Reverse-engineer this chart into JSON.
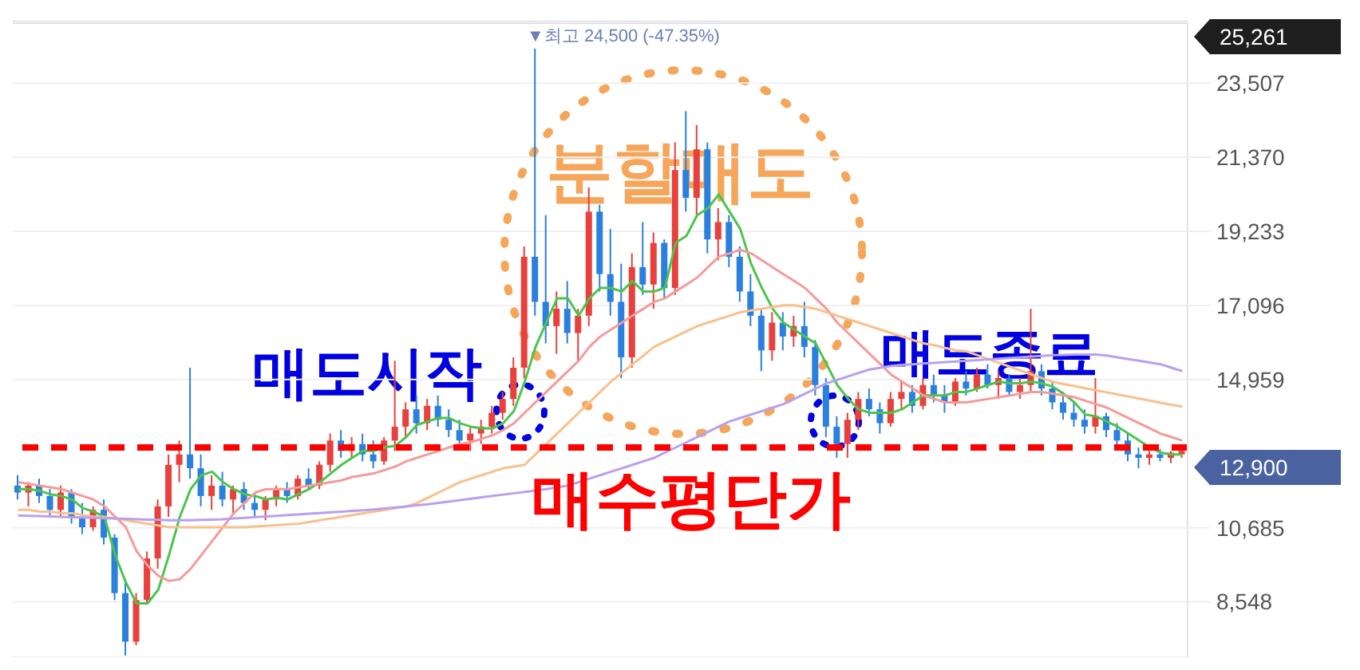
{
  "chart_data": {
    "type": "candlestick",
    "categories": [
      null,
      null,
      null,
      null,
      null,
      null,
      null,
      null,
      null,
      null,
      null,
      null,
      null,
      null,
      null,
      null,
      null,
      null,
      null,
      null,
      null,
      null,
      null,
      null,
      null,
      null,
      null,
      null,
      null,
      null,
      null,
      null,
      null,
      null,
      null,
      null,
      null,
      null,
      null,
      null,
      null,
      null,
      null,
      null,
      null,
      null,
      null,
      null,
      null,
      null,
      null,
      null,
      null,
      null,
      null,
      null,
      null,
      null,
      null,
      null,
      null,
      null,
      null,
      null,
      null,
      null,
      null,
      null,
      null,
      null,
      null,
      null,
      null,
      null,
      null,
      null,
      null,
      null,
      null,
      null,
      null,
      null,
      null,
      null,
      null,
      null,
      null,
      null,
      null,
      null,
      null,
      null,
      null,
      null,
      null,
      null,
      null,
      null,
      null,
      null,
      null,
      null,
      null,
      null,
      null,
      null,
      null,
      null,
      null
    ],
    "ohlc": [
      [
        11900,
        12200,
        11500,
        11700
      ],
      [
        11700,
        12000,
        11300,
        11900
      ],
      [
        11900,
        12100,
        11400,
        11600
      ],
      [
        11600,
        11800,
        11000,
        11200
      ],
      [
        11200,
        11900,
        11000,
        11700
      ],
      [
        11700,
        11800,
        10800,
        11000
      ],
      [
        11000,
        11400,
        10500,
        10700
      ],
      [
        10700,
        11300,
        10600,
        11200
      ],
      [
        11200,
        11500,
        10200,
        10400
      ],
      [
        10400,
        10500,
        8600,
        8800
      ],
      [
        8800,
        9200,
        7000,
        7400
      ],
      [
        7400,
        8800,
        7300,
        8600
      ],
      [
        8600,
        10000,
        8500,
        9800
      ],
      [
        9800,
        11500,
        9500,
        11300
      ],
      [
        11300,
        12800,
        11000,
        12500
      ],
      [
        12500,
        13200,
        12000,
        12800
      ],
      [
        12800,
        15300,
        12100,
        12400
      ],
      [
        12400,
        12800,
        11300,
        11600
      ],
      [
        11600,
        12200,
        11200,
        11900
      ],
      [
        11900,
        12300,
        11300,
        11500
      ],
      [
        11500,
        11900,
        11100,
        11800
      ],
      [
        11800,
        12000,
        11200,
        11400
      ],
      [
        11400,
        11700,
        11000,
        11200
      ],
      [
        11200,
        11600,
        10900,
        11500
      ],
      [
        11500,
        11900,
        11300,
        11800
      ],
      [
        11800,
        12000,
        11400,
        11600
      ],
      [
        11600,
        12200,
        11500,
        12100
      ],
      [
        12100,
        12400,
        11800,
        11900
      ],
      [
        11900,
        12600,
        11800,
        12500
      ],
      [
        12500,
        13400,
        12300,
        13200
      ],
      [
        13200,
        13500,
        12700,
        12900
      ],
      [
        12900,
        13300,
        12700,
        13100
      ],
      [
        13100,
        13400,
        12600,
        12800
      ],
      [
        12800,
        13200,
        12400,
        12600
      ],
      [
        12600,
        13300,
        12500,
        13200
      ],
      [
        13200,
        15500,
        12900,
        13600
      ],
      [
        13600,
        14300,
        13300,
        14100
      ],
      [
        14100,
        14500,
        13400,
        13700
      ],
      [
        13700,
        14400,
        13500,
        14200
      ],
      [
        14200,
        14500,
        13600,
        13800
      ],
      [
        13800,
        14100,
        13300,
        13500
      ],
      [
        13500,
        13800,
        13000,
        13200
      ],
      [
        13200,
        13600,
        12900,
        13400
      ],
      [
        13400,
        13800,
        13100,
        13600
      ],
      [
        13600,
        14200,
        13400,
        14000
      ],
      [
        14000,
        14600,
        13800,
        14400
      ],
      [
        14400,
        15600,
        14200,
        15300
      ],
      [
        15300,
        18800,
        15000,
        18500
      ],
      [
        18500,
        24500,
        16800,
        17200
      ],
      [
        17200,
        19700,
        16000,
        16500
      ],
      [
        16500,
        17500,
        15700,
        17000
      ],
      [
        17000,
        17800,
        16000,
        16300
      ],
      [
        16300,
        17000,
        15500,
        16800
      ],
      [
        16800,
        20500,
        16500,
        19800
      ],
      [
        19800,
        20000,
        17500,
        18000
      ],
      [
        18000,
        19300,
        16800,
        17200
      ],
      [
        17200,
        18300,
        15000,
        15600
      ],
      [
        15600,
        18600,
        15300,
        18200
      ],
      [
        18200,
        19500,
        17400,
        17700
      ],
      [
        17700,
        19200,
        17000,
        18900
      ],
      [
        18900,
        19000,
        17300,
        17600
      ],
      [
        17600,
        21800,
        17400,
        21000
      ],
      [
        21000,
        22700,
        19800,
        20200
      ],
      [
        20200,
        22300,
        19700,
        21600
      ],
      [
        21600,
        21800,
        18600,
        19000
      ],
      [
        19000,
        19900,
        18400,
        19500
      ],
      [
        19500,
        19700,
        18200,
        18500
      ],
      [
        18500,
        18800,
        17200,
        17500
      ],
      [
        17500,
        18000,
        16500,
        16800
      ],
      [
        16800,
        17000,
        15200,
        15800
      ],
      [
        15800,
        16900,
        15500,
        16600
      ],
      [
        16600,
        16900,
        15800,
        16200
      ],
      [
        16200,
        16800,
        15900,
        16500
      ],
      [
        16500,
        17200,
        15600,
        15900
      ],
      [
        15900,
        16100,
        14500,
        14800
      ],
      [
        14800,
        15000,
        13300,
        13600
      ],
      [
        13600,
        13900,
        12700,
        13100
      ],
      [
        13100,
        14000,
        12700,
        13800
      ],
      [
        13800,
        14600,
        13500,
        14400
      ],
      [
        14400,
        14700,
        13900,
        14100
      ],
      [
        14100,
        14300,
        13400,
        13700
      ],
      [
        13700,
        14600,
        13600,
        14400
      ],
      [
        14400,
        14900,
        14100,
        14600
      ],
      [
        14600,
        14800,
        14000,
        14200
      ],
      [
        14200,
        15000,
        14100,
        14800
      ],
      [
        14800,
        15100,
        14300,
        14500
      ],
      [
        14500,
        14800,
        14000,
        14300
      ],
      [
        14300,
        15000,
        14200,
        14900
      ],
      [
        14900,
        15200,
        14500,
        14700
      ],
      [
        14700,
        15300,
        14600,
        15100
      ],
      [
        15100,
        15400,
        14700,
        14800
      ],
      [
        14800,
        15200,
        14400,
        15000
      ],
      [
        15000,
        15100,
        14500,
        14600
      ],
      [
        14600,
        15000,
        14400,
        14800
      ],
      [
        14800,
        17000,
        14600,
        15200
      ],
      [
        15200,
        15400,
        14500,
        14700
      ],
      [
        14700,
        14900,
        14100,
        14300
      ],
      [
        14300,
        14600,
        13800,
        14000
      ],
      [
        14000,
        14300,
        13600,
        13800
      ],
      [
        13800,
        14100,
        13400,
        13600
      ],
      [
        13600,
        15000,
        13400,
        13900
      ],
      [
        13900,
        14000,
        13300,
        13500
      ],
      [
        13500,
        13700,
        13000,
        13200
      ],
      [
        13200,
        13400,
        12600,
        12800
      ],
      [
        12800,
        13000,
        12400,
        12700
      ],
      [
        12700,
        12900,
        12500,
        12800
      ],
      [
        12800,
        12950,
        12600,
        12700
      ],
      [
        12700,
        12900,
        12550,
        12850
      ],
      [
        12800,
        12950,
        12700,
        12900
      ]
    ],
    "series": [
      {
        "type": "line",
        "color": "#4cc44c",
        "values": [
          11800,
          11800,
          11750,
          11650,
          11600,
          11500,
          11250,
          11150,
          11000,
          9900,
          9100,
          8500,
          8500,
          8900,
          9900,
          11000,
          11800,
          12200,
          12300,
          12000,
          11800,
          11650,
          11600,
          11500,
          11550,
          11500,
          11650,
          11800,
          12000,
          12250,
          12500,
          12700,
          12900,
          12900,
          13000,
          13050,
          13300,
          13650,
          13750,
          13850,
          13850,
          13700,
          13600,
          13550,
          13550,
          13700,
          14050,
          14900,
          15900,
          16600,
          17300,
          17300,
          16800,
          17300,
          17600,
          17600,
          17500,
          17800,
          17500,
          17500,
          17600,
          18900,
          19100,
          19700,
          19900,
          20300,
          19800,
          19300,
          18300,
          17600,
          17000,
          16600,
          16400,
          16200,
          16000,
          15400,
          14800,
          14400,
          14100,
          14000,
          14000,
          14000,
          14100,
          14300,
          14500,
          14500,
          14500,
          14600,
          14600,
          14700,
          14800,
          14900,
          14850,
          14850,
          14900,
          14850,
          14750,
          14550,
          14300,
          13950,
          13900,
          13750,
          13600,
          13400,
          13200,
          13000,
          12850,
          12800,
          12800
        ]
      },
      {
        "type": "line",
        "color": "#f59a9a",
        "values": [
          12000,
          11950,
          11900,
          11850,
          11800,
          11700,
          11600,
          11500,
          11300,
          11000,
          10700,
          10000,
          9600,
          9300,
          9150,
          9200,
          9500,
          9900,
          10300,
          10700,
          11100,
          11400,
          11700,
          11800,
          11800,
          11800,
          11850,
          11900,
          11950,
          12000,
          12050,
          12150,
          12200,
          12250,
          12350,
          12450,
          12600,
          12700,
          12800,
          12900,
          13000,
          13100,
          13150,
          13250,
          13350,
          13500,
          13700,
          14000,
          14300,
          14600,
          14900,
          15200,
          15500,
          15900,
          16200,
          16400,
          16600,
          16800,
          17000,
          17200,
          17300,
          17500,
          17700,
          17900,
          18200,
          18500,
          18600,
          18700,
          18600,
          18400,
          18200,
          18000,
          17800,
          17600,
          17300,
          17000,
          16600,
          16300,
          16000,
          15700,
          15400,
          15100,
          14900,
          14700,
          14500,
          14400,
          14300,
          14300,
          14300,
          14350,
          14400,
          14450,
          14500,
          14550,
          14600,
          14600,
          14550,
          14500,
          14450,
          14350,
          14250,
          14150,
          14000,
          13850,
          13700,
          13550,
          13400,
          13300,
          13200
        ]
      },
      {
        "type": "line",
        "color": "#f8c08c",
        "values": [
          11200,
          11200,
          11150,
          11150,
          11100,
          11100,
          11050,
          11000,
          11000,
          10950,
          10900,
          10850,
          10800,
          10750,
          10700,
          10700,
          10700,
          10700,
          10700,
          10700,
          10700,
          10700,
          10720,
          10740,
          10760,
          10780,
          10800,
          10850,
          10900,
          10950,
          11000,
          11050,
          11100,
          11150,
          11200,
          11250,
          11300,
          11400,
          11550,
          11700,
          11850,
          12000,
          12100,
          12200,
          12300,
          12400,
          12450,
          12500,
          12800,
          13100,
          13400,
          13700,
          14000,
          14300,
          14600,
          14900,
          15150,
          15400,
          15650,
          15900,
          16050,
          16200,
          16350,
          16500,
          16600,
          16700,
          16800,
          16900,
          16950,
          17000,
          17050,
          17100,
          17100,
          17050,
          17000,
          16900,
          16800,
          16700,
          16600,
          16500,
          16400,
          16300,
          16200,
          16100,
          16000,
          15950,
          15870,
          15800,
          15770,
          15660,
          15550,
          15440,
          15330,
          15220,
          15110,
          15000,
          14890,
          14830,
          14770,
          14710,
          14650,
          14590,
          14530,
          14470,
          14410,
          14350,
          14290,
          14230,
          14180
        ]
      },
      {
        "type": "line",
        "color": "#b9a0ee",
        "values": [
          11040,
          11030,
          11020,
          11010,
          11000,
          10990,
          10980,
          10970,
          10960,
          10950,
          10940,
          10930,
          10920,
          10910,
          10900,
          10900,
          10900,
          10910,
          10920,
          10930,
          10950,
          10970,
          10990,
          11010,
          11030,
          11050,
          11070,
          11090,
          11110,
          11130,
          11150,
          11170,
          11190,
          11210,
          11240,
          11270,
          11300,
          11330,
          11360,
          11400,
          11440,
          11480,
          11520,
          11560,
          11600,
          11640,
          11680,
          11720,
          11760,
          11800,
          11850,
          11900,
          12000,
          12100,
          12200,
          12300,
          12400,
          12500,
          12600,
          12700,
          12850,
          13000,
          13150,
          13300,
          13450,
          13600,
          13750,
          13850,
          13950,
          14050,
          14150,
          14250,
          14400,
          14550,
          14700,
          14850,
          14950,
          15050,
          15150,
          15250,
          15300,
          15350,
          15380,
          15400,
          15420,
          15440,
          15460,
          15480,
          15500,
          15520,
          15540,
          15560,
          15580,
          15600,
          15620,
          15640,
          15660,
          15670,
          15680,
          15680,
          15680,
          15650,
          15600,
          15550,
          15500,
          15450,
          15400,
          15300,
          15200
        ]
      }
    ],
    "ylim": [
      6950,
      25261
    ],
    "yticks": [
      {
        "value": 8548,
        "label": "8,548"
      },
      {
        "value": 10685,
        "label": "10,685"
      },
      {
        "value": 14959,
        "label": "14,959"
      },
      {
        "value": 17096,
        "label": "17,096"
      },
      {
        "value": 19233,
        "label": "19,233"
      },
      {
        "value": 21370,
        "label": "21,370"
      },
      {
        "value": 23507,
        "label": "23,507"
      }
    ],
    "grid": "y",
    "tick_labels": "y",
    "ref_lines": [
      {
        "axis": "y",
        "value": 13000,
        "label": "매수평단가",
        "color": "#ff0000",
        "line_style": "dashed"
      }
    ],
    "annotations": [
      "▼최고 24,500 (-47.35%)",
      "분할매도",
      "매도시작",
      "매도종료",
      "25,261",
      "12,900"
    ]
  }
}
